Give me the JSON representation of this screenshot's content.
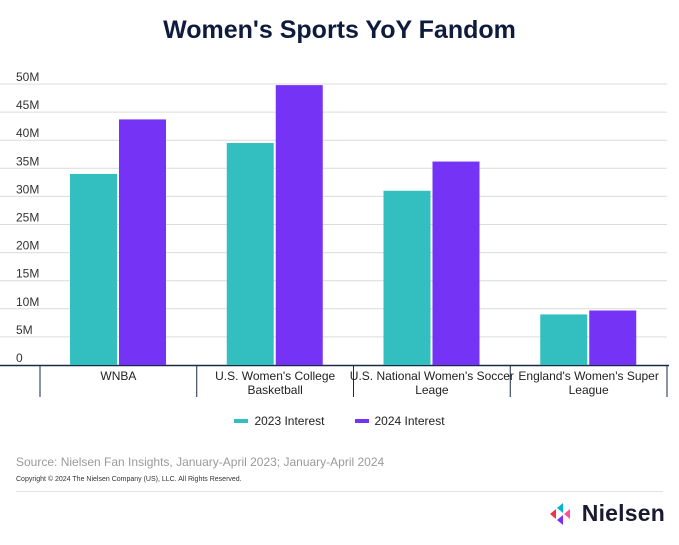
{
  "chart_data": {
    "type": "bar",
    "title": "Women's Sports YoY Fandom",
    "categories": [
      [
        "WNBA"
      ],
      [
        "U.S. Women's College",
        "Basketball"
      ],
      [
        "U.S. National Women's Soccer",
        "Leage"
      ],
      [
        "England's Women's Super",
        "League"
      ]
    ],
    "series": [
      {
        "name": "2023 Interest",
        "color": "#33bfbf",
        "values": [
          34,
          39.5,
          31,
          9
        ]
      },
      {
        "name": "2024 Interest",
        "color": "#7533f5",
        "values": [
          43.7,
          49.8,
          36.2,
          9.7
        ]
      }
    ],
    "ylim": [
      0,
      50
    ],
    "yticks": [
      "0",
      "5M",
      "10M",
      "15M",
      "20M",
      "25M",
      "30M",
      "35M",
      "40M",
      "45M",
      "50M"
    ],
    "legend_position": "bottom",
    "grid": true
  },
  "source": "Source: Nielsen Fan Insights, January-April 2023; January-April 2024",
  "copyright": "Copyright © 2024 The Nielsen Company (US), LLC. All Rights Reserved.",
  "brand": {
    "name": "Nielsen",
    "icon": "nielsen-logo-icon"
  }
}
